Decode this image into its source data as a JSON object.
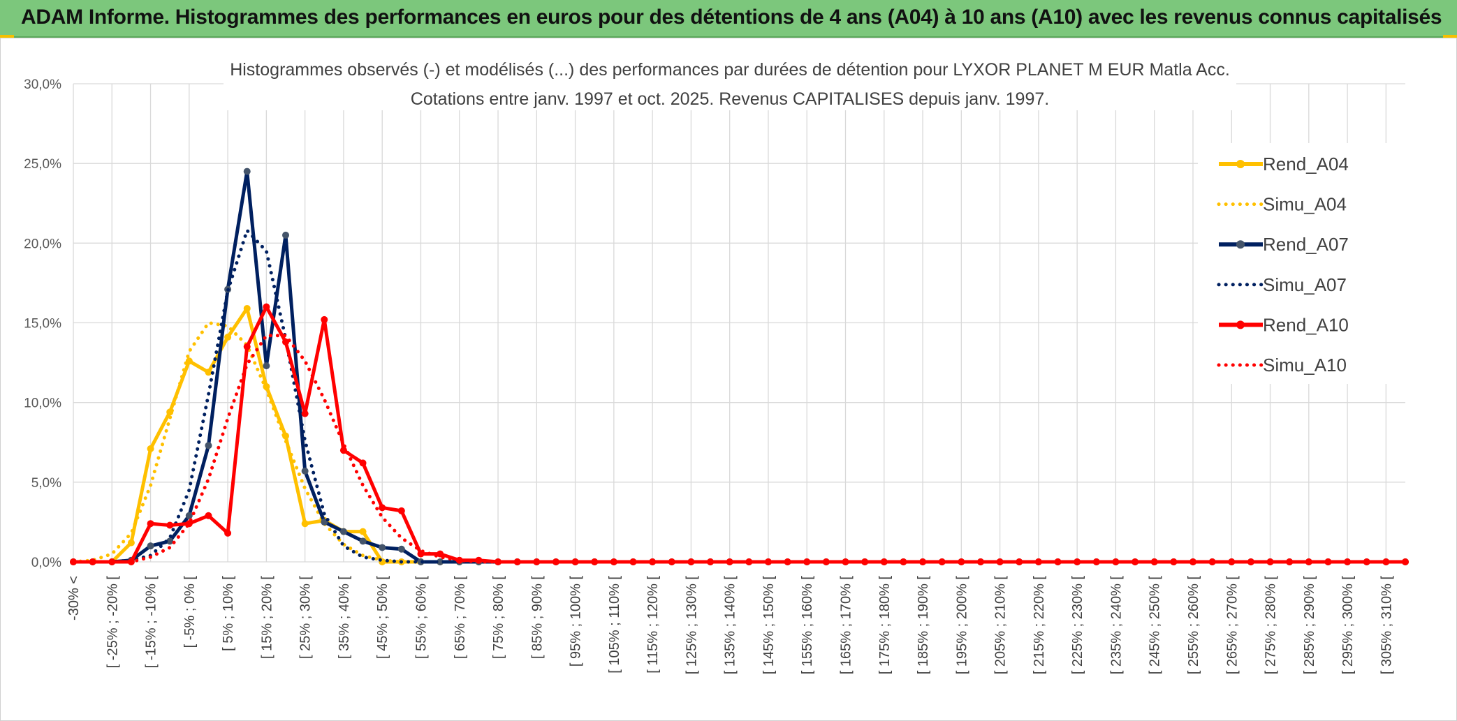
{
  "banner": {
    "title": "ADAM Informe. Histogrammes des performances en euros pour des détentions de 4 ans (A04) à 10 ans (A10) avec les revenus connus capitalisés",
    "color": "#7cc77c"
  },
  "chart_data": {
    "type": "line",
    "title_line1": "Histogrammes observés (-) et modélisés (...) des performances par durées de détention pour LYXOR PLANET M EUR Matla Acc.",
    "title_line2": "Cotations entre janv. 1997 et oct. 2025. Revenus CAPITALISES depuis janv. 1997.",
    "ylim": [
      0,
      30
    ],
    "yticks": [
      "0,0%",
      "5,0%",
      "10,0%",
      "15,0%",
      "20,0%",
      "25,0%",
      "30,0%"
    ],
    "x_labels": [
      "-30% <",
      "[ -25% ; -20% [",
      "[ -15% ; -10% [",
      "[ -5% ; 0% [",
      "[ 5% ; 10% [",
      "[ 15% ; 20% [",
      "[ 25% ; 30% [",
      "[ 35% ; 40% [",
      "[ 45% ; 50% [",
      "[ 55% ; 60% [",
      "[ 65% ; 70% [",
      "[ 75% ; 80% [",
      "[ 85% ; 90% [",
      "[ 95% ; 100% [",
      "[ 105% ; 110% [",
      "[ 115% ; 120% [",
      "[ 125% ; 130% [",
      "[ 135% ; 140% [",
      "[ 145% ; 150% [",
      "[ 155% ; 160% [",
      "[ 165% ; 170% [",
      "[ 175% ; 180% [",
      "[ 185% ; 190% [",
      "[ 195% ; 200% [",
      "[ 205% ; 210% [",
      "[ 215% ; 220% [",
      "[ 225% ; 230% [",
      "[ 235% ; 240% [",
      "[ 245% ; 250% [",
      "[ 255% ; 260% [",
      "[ 265% ; 270% [",
      "[ 275% ; 280% [",
      "[ 285% ; 290% [",
      "[ 295% ; 300% [",
      "[ 305% ; 310% ["
    ],
    "legend_position": "right",
    "grid": true,
    "series": [
      {
        "name": "Rend_A04",
        "style": "solid",
        "color": "#ffc000",
        "values": [
          0,
          0,
          0,
          1.2,
          7.1,
          9.4,
          12.6,
          11.9,
          14.1,
          15.9,
          11.0,
          7.9,
          2.4,
          2.6,
          1.9,
          1.9,
          0,
          0,
          0,
          0,
          0,
          0,
          0,
          0,
          0,
          0,
          0,
          0,
          0,
          0,
          0,
          0,
          0,
          0,
          0,
          0,
          0,
          0,
          0,
          0,
          0,
          0,
          0,
          0,
          0,
          0,
          0,
          0,
          0,
          0,
          0,
          0,
          0,
          0,
          0,
          0,
          0,
          0,
          0,
          0,
          0,
          0,
          0,
          0,
          0,
          0,
          0,
          0,
          0,
          0
        ]
      },
      {
        "name": "Simu_A04",
        "style": "dotted",
        "color": "#ffc000",
        "values": [
          0,
          0.1,
          0.5,
          1.8,
          4.8,
          9.0,
          13.2,
          15.0,
          14.8,
          13.6,
          10.8,
          7.6,
          4.6,
          2.4,
          1.1,
          0.4,
          0.1,
          0,
          0,
          0,
          0,
          0,
          0,
          0,
          0,
          0,
          0,
          0,
          0,
          0,
          0,
          0,
          0,
          0,
          0,
          0,
          0,
          0,
          0,
          0,
          0,
          0,
          0,
          0,
          0,
          0,
          0,
          0,
          0,
          0,
          0,
          0,
          0,
          0,
          0,
          0,
          0,
          0,
          0,
          0,
          0,
          0,
          0,
          0,
          0,
          0,
          0,
          0,
          0,
          0
        ]
      },
      {
        "name": "Rend_A07",
        "style": "solid",
        "color": "#002060",
        "values": [
          0,
          0,
          0,
          0.1,
          1.0,
          1.3,
          2.9,
          7.3,
          17.1,
          24.5,
          12.3,
          20.5,
          5.7,
          2.5,
          1.9,
          1.3,
          0.9,
          0.8,
          0,
          0,
          0,
          0,
          0,
          0,
          0,
          0,
          0,
          0,
          0,
          0,
          0,
          0,
          0,
          0,
          0,
          0,
          0,
          0,
          0,
          0,
          0,
          0,
          0,
          0,
          0,
          0,
          0,
          0,
          0,
          0,
          0,
          0,
          0,
          0,
          0,
          0,
          0,
          0,
          0,
          0,
          0,
          0,
          0,
          0,
          0,
          0,
          0,
          0,
          0,
          0
        ]
      },
      {
        "name": "Simu_A07",
        "style": "dotted",
        "color": "#002060",
        "values": [
          0,
          0,
          0,
          0.1,
          0.4,
          1.5,
          4.5,
          10.5,
          17.0,
          20.8,
          19.5,
          14.0,
          7.6,
          3.0,
          1.0,
          0.3,
          0.1,
          0,
          0,
          0,
          0,
          0,
          0,
          0,
          0,
          0,
          0,
          0,
          0,
          0,
          0,
          0,
          0,
          0,
          0,
          0,
          0,
          0,
          0,
          0,
          0,
          0,
          0,
          0,
          0,
          0,
          0,
          0,
          0,
          0,
          0,
          0,
          0,
          0,
          0,
          0,
          0,
          0,
          0,
          0,
          0,
          0,
          0,
          0,
          0,
          0,
          0,
          0,
          0,
          0
        ]
      },
      {
        "name": "Rend_A10",
        "style": "solid",
        "color": "#ff0000",
        "values": [
          0,
          0,
          0,
          0,
          2.4,
          2.3,
          2.4,
          2.9,
          1.8,
          13.5,
          16.0,
          13.8,
          9.3,
          15.2,
          7.0,
          6.2,
          3.4,
          3.2,
          0.5,
          0.5,
          0.1,
          0.1,
          0,
          0,
          0,
          0,
          0,
          0,
          0,
          0,
          0,
          0,
          0,
          0,
          0,
          0,
          0,
          0,
          0,
          0,
          0,
          0,
          0,
          0,
          0,
          0,
          0,
          0,
          0,
          0,
          0,
          0,
          0,
          0,
          0,
          0,
          0,
          0,
          0,
          0,
          0,
          0,
          0,
          0,
          0,
          0,
          0,
          0,
          0,
          0
        ]
      },
      {
        "name": "Simu_A10",
        "style": "dotted",
        "color": "#ff0000",
        "values": [
          0,
          0,
          0,
          0,
          0.3,
          0.9,
          2.4,
          5.2,
          9.0,
          12.4,
          14.2,
          14.2,
          12.6,
          10.2,
          7.4,
          4.8,
          2.8,
          1.5,
          0.7,
          0.3,
          0.1,
          0,
          0,
          0,
          0,
          0,
          0,
          0,
          0,
          0,
          0,
          0,
          0,
          0,
          0,
          0,
          0,
          0,
          0,
          0,
          0,
          0,
          0,
          0,
          0,
          0,
          0,
          0,
          0,
          0,
          0,
          0,
          0,
          0,
          0,
          0,
          0,
          0,
          0,
          0,
          0,
          0,
          0,
          0,
          0,
          0,
          0,
          0,
          0,
          0
        ]
      }
    ]
  }
}
